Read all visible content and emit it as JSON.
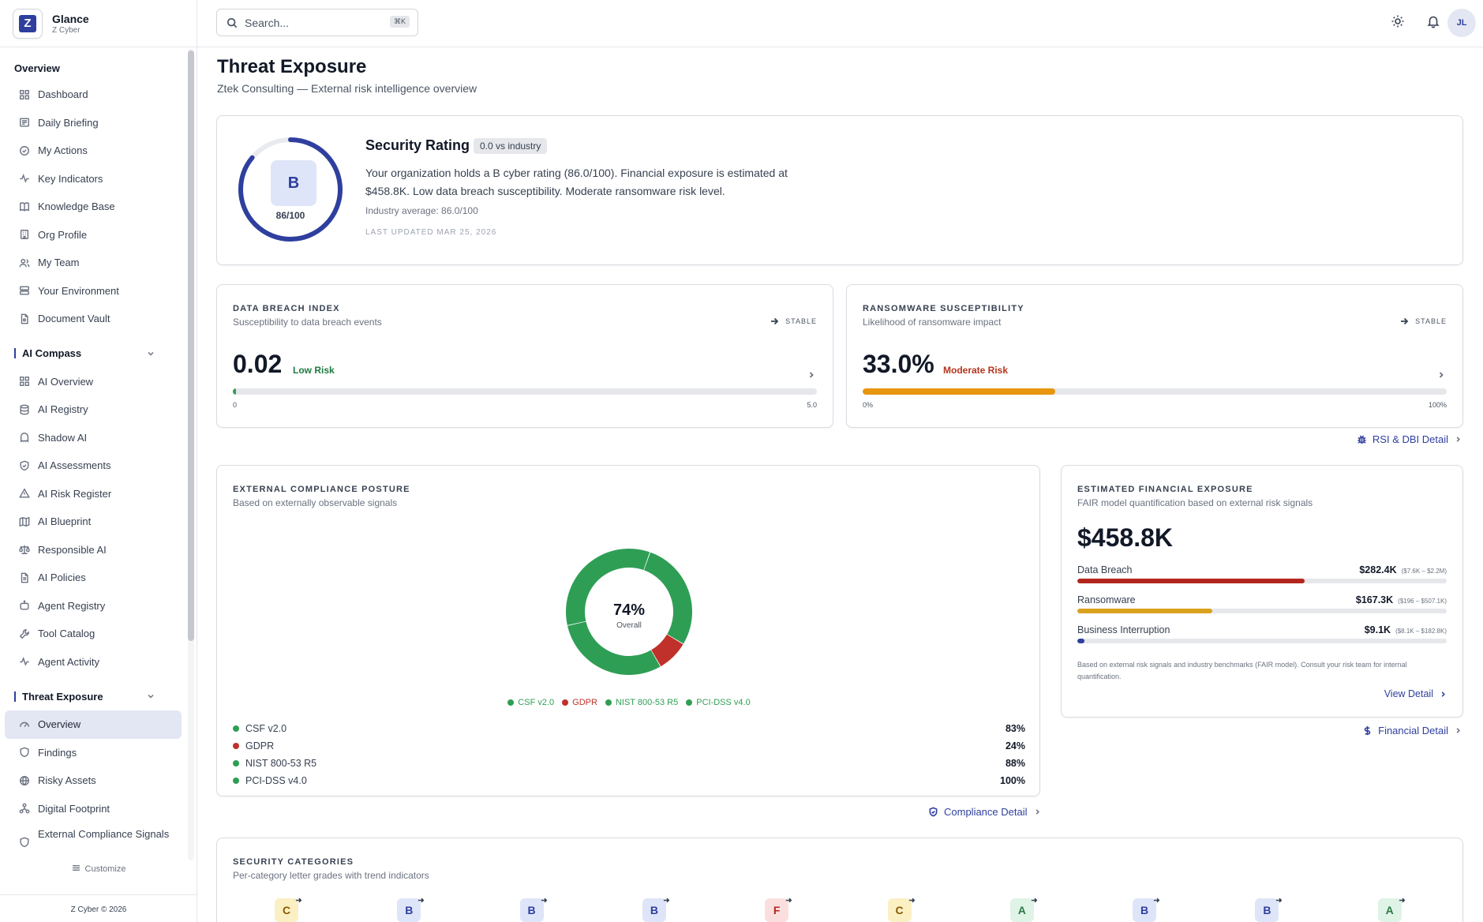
{
  "brand": {
    "name": "Glance",
    "sub": "Z Cyber",
    "logo_letter": "Z"
  },
  "search": {
    "placeholder": "Search...",
    "shortcut": "⌘K"
  },
  "user": {
    "initials": "JL"
  },
  "sidebar": {
    "overview_heading": "Overview",
    "overview_items": [
      {
        "label": "Dashboard",
        "icon": "grid-icon"
      },
      {
        "label": "Daily Briefing",
        "icon": "newspaper-icon"
      },
      {
        "label": "My Actions",
        "icon": "check-circle-icon"
      },
      {
        "label": "Key Indicators",
        "icon": "activity-icon"
      },
      {
        "label": "Knowledge Base",
        "icon": "book-icon"
      },
      {
        "label": "Org Profile",
        "icon": "building-icon"
      },
      {
        "label": "My Team",
        "icon": "users-icon"
      },
      {
        "label": "Your Environment",
        "icon": "server-icon"
      },
      {
        "label": "Document Vault",
        "icon": "file-icon"
      }
    ],
    "ai_group": "AI Compass",
    "ai_items": [
      {
        "label": "AI Overview",
        "icon": "grid-icon"
      },
      {
        "label": "AI Registry",
        "icon": "database-icon"
      },
      {
        "label": "Shadow AI",
        "icon": "ghost-icon"
      },
      {
        "label": "AI Assessments",
        "icon": "shield-check-icon"
      },
      {
        "label": "AI Risk Register",
        "icon": "alert-triangle-icon"
      },
      {
        "label": "AI Blueprint",
        "icon": "map-icon"
      },
      {
        "label": "Responsible AI",
        "icon": "scale-icon"
      },
      {
        "label": "AI Policies",
        "icon": "file-text-icon"
      },
      {
        "label": "Agent Registry",
        "icon": "bot-icon"
      },
      {
        "label": "Tool Catalog",
        "icon": "wrench-icon"
      },
      {
        "label": "Agent Activity",
        "icon": "activity-icon"
      }
    ],
    "threat_group": "Threat Exposure",
    "threat_items": [
      {
        "label": "Overview",
        "icon": "gauge-icon",
        "active": true
      },
      {
        "label": "Findings",
        "icon": "shield-icon"
      },
      {
        "label": "Risky Assets",
        "icon": "globe-icon"
      },
      {
        "label": "Digital Footprint",
        "icon": "network-icon"
      },
      {
        "label": "External Compliance Signals",
        "icon": "shield-icon"
      }
    ],
    "customize": "Customize",
    "copyright": "Z Cyber © 2026"
  },
  "page": {
    "title": "Threat Exposure",
    "subtitle": "Ztek Consulting — External risk intelligence overview"
  },
  "rating": {
    "grade": "B",
    "score": "86/100",
    "score_fraction": 0.86,
    "title": "Security Rating",
    "badge": "0.0 vs industry",
    "text": "Your organization holds a B cyber rating (86.0/100). Financial exposure is estimated at $458.8K. Low data breach susceptibility. Moderate ransomware risk level.",
    "industry_avg": "Industry average: 86.0/100",
    "updated": "LAST UPDATED MAR 25, 2026"
  },
  "dbi": {
    "label": "DATA BREACH INDEX",
    "desc": "Susceptibility to data breach events",
    "trend": "STABLE",
    "value": "0.02",
    "risk": "Low Risk",
    "fraction": 0.004,
    "lo": "0",
    "hi": "5.0"
  },
  "rsi": {
    "label": "RANSOMWARE SUSCEPTIBILITY",
    "desc": "Likelihood of ransomware impact",
    "trend": "STABLE",
    "value": "33.0%",
    "risk": "Moderate Risk",
    "fraction": 0.33,
    "lo": "0%",
    "hi": "100%"
  },
  "links": {
    "rsi_dbi": "RSI & DBI Detail",
    "compliance": "Compliance Detail",
    "financial": "Financial Detail",
    "view_detail": "View Detail"
  },
  "compliance": {
    "label": "EXTERNAL COMPLIANCE POSTURE",
    "desc": "Based on externally observable signals",
    "overall": "74%",
    "overall_label": "Overall",
    "frameworks": [
      {
        "name": "CSF v2.0",
        "pct": "83%",
        "value": 83,
        "color": "#2f9e55"
      },
      {
        "name": "GDPR",
        "pct": "24%",
        "value": 24,
        "color": "#c0312b"
      },
      {
        "name": "NIST 800-53 R5",
        "pct": "88%",
        "value": 88,
        "color": "#2f9e55"
      },
      {
        "name": "PCI-DSS v4.0",
        "pct": "100%",
        "value": 100,
        "color": "#2f9e55"
      }
    ]
  },
  "financial": {
    "label": "ESTIMATED FINANCIAL EXPOSURE",
    "desc": "FAIR model quantification based on external risk signals",
    "total": "$458.8K",
    "rows": [
      {
        "label": "Data Breach",
        "amount": "$282.4K",
        "range": "($7.6K – $2.2M)",
        "fraction": 0.615,
        "color": "#b3261e"
      },
      {
        "label": "Ransomware",
        "amount": "$167.3K",
        "range": "($196 – $507.1K)",
        "fraction": 0.365,
        "color": "#d9a11c"
      },
      {
        "label": "Business Interruption",
        "amount": "$9.1K",
        "range": "($8.1K – $182.8K)",
        "fraction": 0.02,
        "color": "#2e3f9e"
      }
    ],
    "note": "Based on external risk signals and industry benchmarks (FAIR model). Consult your risk team for internal quantification."
  },
  "categories": {
    "label": "SECURITY CATEGORIES",
    "desc": "Per-category letter grades with trend indicators",
    "grades": [
      "C",
      "B",
      "B",
      "B",
      "F",
      "C",
      "A",
      "B",
      "B",
      "A"
    ]
  },
  "colors": {
    "accent": "#2e3f9e",
    "green": "#2f9e55",
    "red": "#c0312b",
    "orange": "#e8950f",
    "low_risk": "#1f7a3f",
    "moderate_risk": "#b3341c"
  }
}
